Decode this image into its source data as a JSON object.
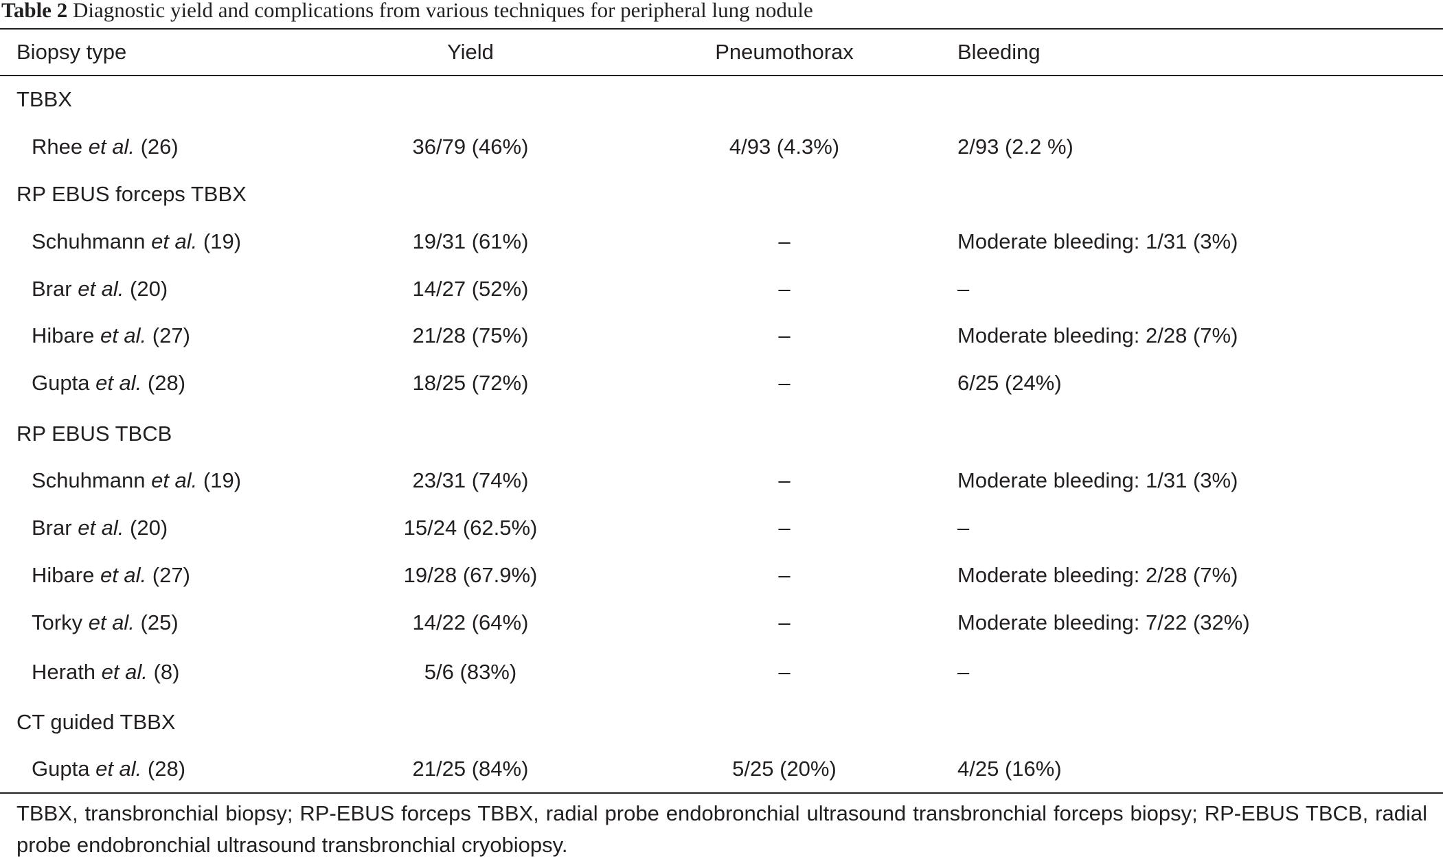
{
  "caption": {
    "label": "Table 2",
    "text": "Diagnostic yield and complications from various techniques for peripheral lung nodule"
  },
  "table": {
    "headers": {
      "biopsy_type": "Biopsy type",
      "yield": "Yield",
      "pneumothorax": "Pneumothorax",
      "bleeding": "Bleeding"
    },
    "groups": [
      {
        "name": "TBBX",
        "rows": [
          {
            "author": "Rhee",
            "etal": "et al.",
            "ref": "(26)",
            "yield": "36/79 (46%)",
            "pneumothorax": "4/93 (4.3%)",
            "bleeding": "2/93 (2.2 %)"
          }
        ]
      },
      {
        "name": "RP EBUS forceps TBBX",
        "rows": [
          {
            "author": "Schuhmann",
            "etal": "et al.",
            "ref": "(19)",
            "yield": "19/31 (61%)",
            "pneumothorax": "–",
            "bleeding": "Moderate bleeding: 1/31 (3%)"
          },
          {
            "author": "Brar",
            "etal": "et al.",
            "ref": "(20)",
            "yield": "14/27 (52%)",
            "pneumothorax": "–",
            "bleeding": "–"
          },
          {
            "author": "Hibare",
            "etal": "et al.",
            "ref": "(27)",
            "yield": "21/28 (75%)",
            "pneumothorax": "–",
            "bleeding": "Moderate bleeding: 2/28 (7%)"
          },
          {
            "author": "Gupta",
            "etal": "et al.",
            "ref": "(28)",
            "yield": "18/25 (72%)",
            "pneumothorax": "–",
            "bleeding": "6/25 (24%)"
          }
        ]
      },
      {
        "name": "RP EBUS TBCB",
        "rows": [
          {
            "author": "Schuhmann",
            "etal": "et al.",
            "ref": "(19)",
            "yield": "23/31 (74%)",
            "pneumothorax": "–",
            "bleeding": "Moderate bleeding: 1/31 (3%)"
          },
          {
            "author": "Brar",
            "etal": "et al.",
            "ref": "(20)",
            "yield": "15/24 (62.5%)",
            "pneumothorax": "–",
            "bleeding": "–"
          },
          {
            "author": "Hibare",
            "etal": "et al.",
            "ref": "(27)",
            "yield": "19/28 (67.9%)",
            "pneumothorax": "–",
            "bleeding": "Moderate bleeding: 2/28 (7%)"
          },
          {
            "author": "Torky",
            "etal": "et al.",
            "ref": "(25)",
            "yield": "14/22 (64%)",
            "pneumothorax": "–",
            "bleeding": "Moderate bleeding: 7/22 (32%)"
          },
          {
            "author": "Herath",
            "etal": "et al.",
            "ref": "(8)",
            "yield": "5/6 (83%)",
            "pneumothorax": "–",
            "bleeding": "–"
          }
        ]
      },
      {
        "name": "CT guided TBBX",
        "rows": [
          {
            "author": "Gupta",
            "etal": "et al.",
            "ref": "(28)",
            "yield": "21/25 (84%)",
            "pneumothorax": "5/25 (20%)",
            "bleeding": "4/25 (16%)"
          }
        ]
      }
    ]
  },
  "footnote": "TBBX, transbronchial biopsy; RP-EBUS forceps TBBX, radial probe endobronchial ultrasound transbronchial forceps biopsy; RP-EBUS TBCB, radial probe endobronchial ultrasound transbronchial cryobiopsy."
}
